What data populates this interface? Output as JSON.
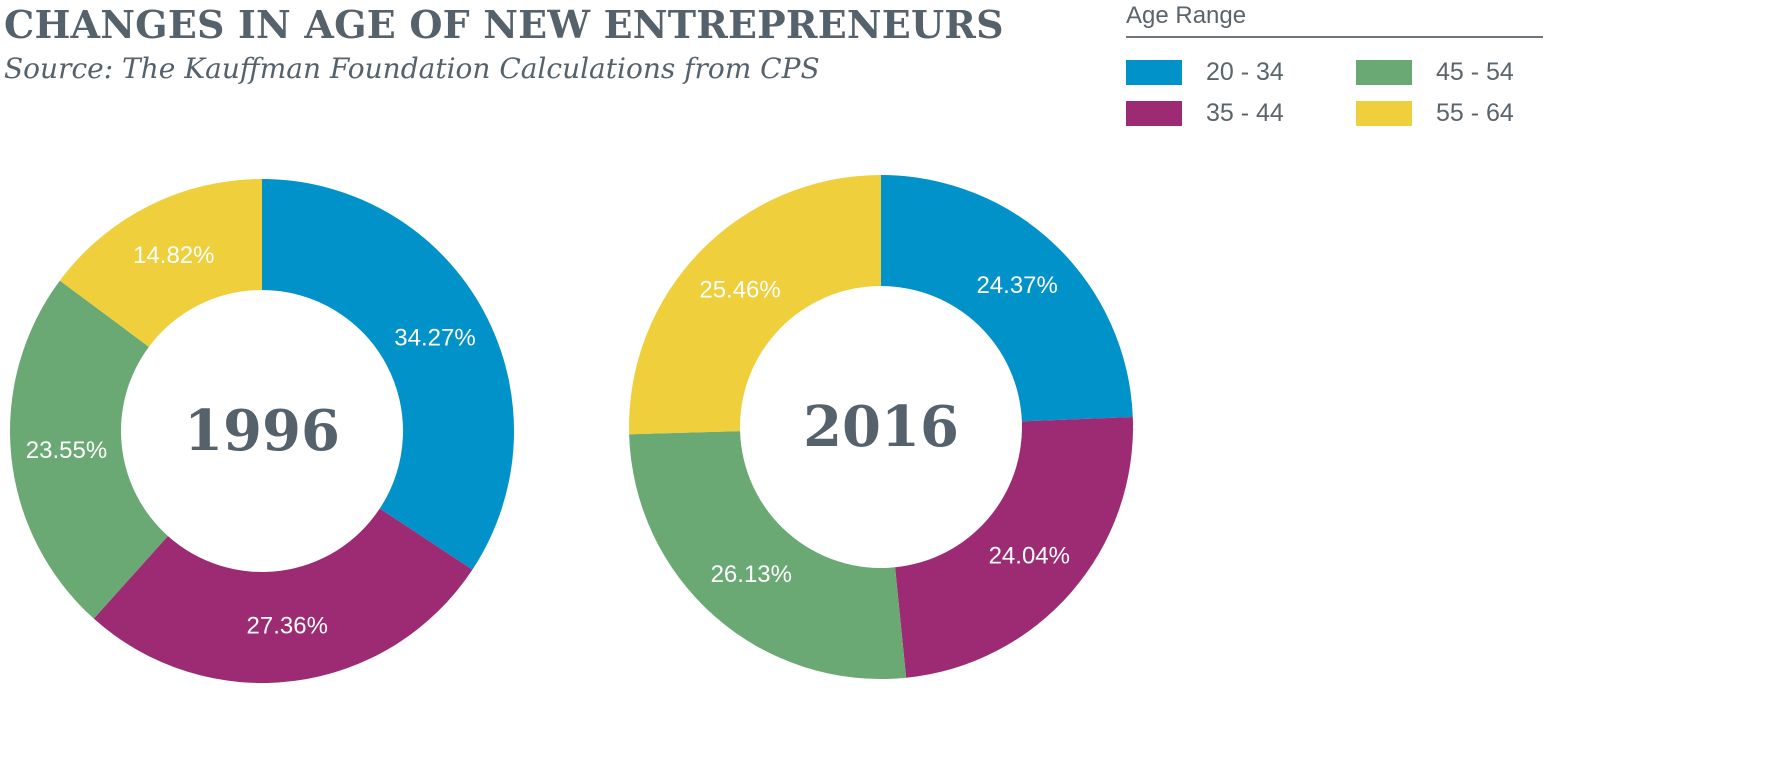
{
  "chart_data": {
    "type": "pie",
    "title": "CHANGES IN AGE OF NEW ENTREPRENEURS",
    "subtitle": "Source: The Kauffman Foundation Calculations from CPS",
    "legend": {
      "title": "Age Range",
      "placement": "top-right"
    },
    "categories": [
      "20 - 34",
      "35 - 44",
      "45 - 54",
      "55 - 64"
    ],
    "colors": [
      "#0092c8",
      "#9c2b73",
      "#6aa974",
      "#f0cf3c"
    ],
    "charts": [
      {
        "name": "1996",
        "values": [
          34.27,
          27.36,
          23.55,
          14.82
        ],
        "labels": [
          "34.27%",
          "27.36%",
          "23.55%",
          "14.82%"
        ]
      },
      {
        "name": "2016",
        "values": [
          24.37,
          24.04,
          26.13,
          25.46
        ],
        "labels": [
          "24.37%",
          "24.04%",
          "26.13%",
          "25.46%"
        ]
      }
    ]
  }
}
